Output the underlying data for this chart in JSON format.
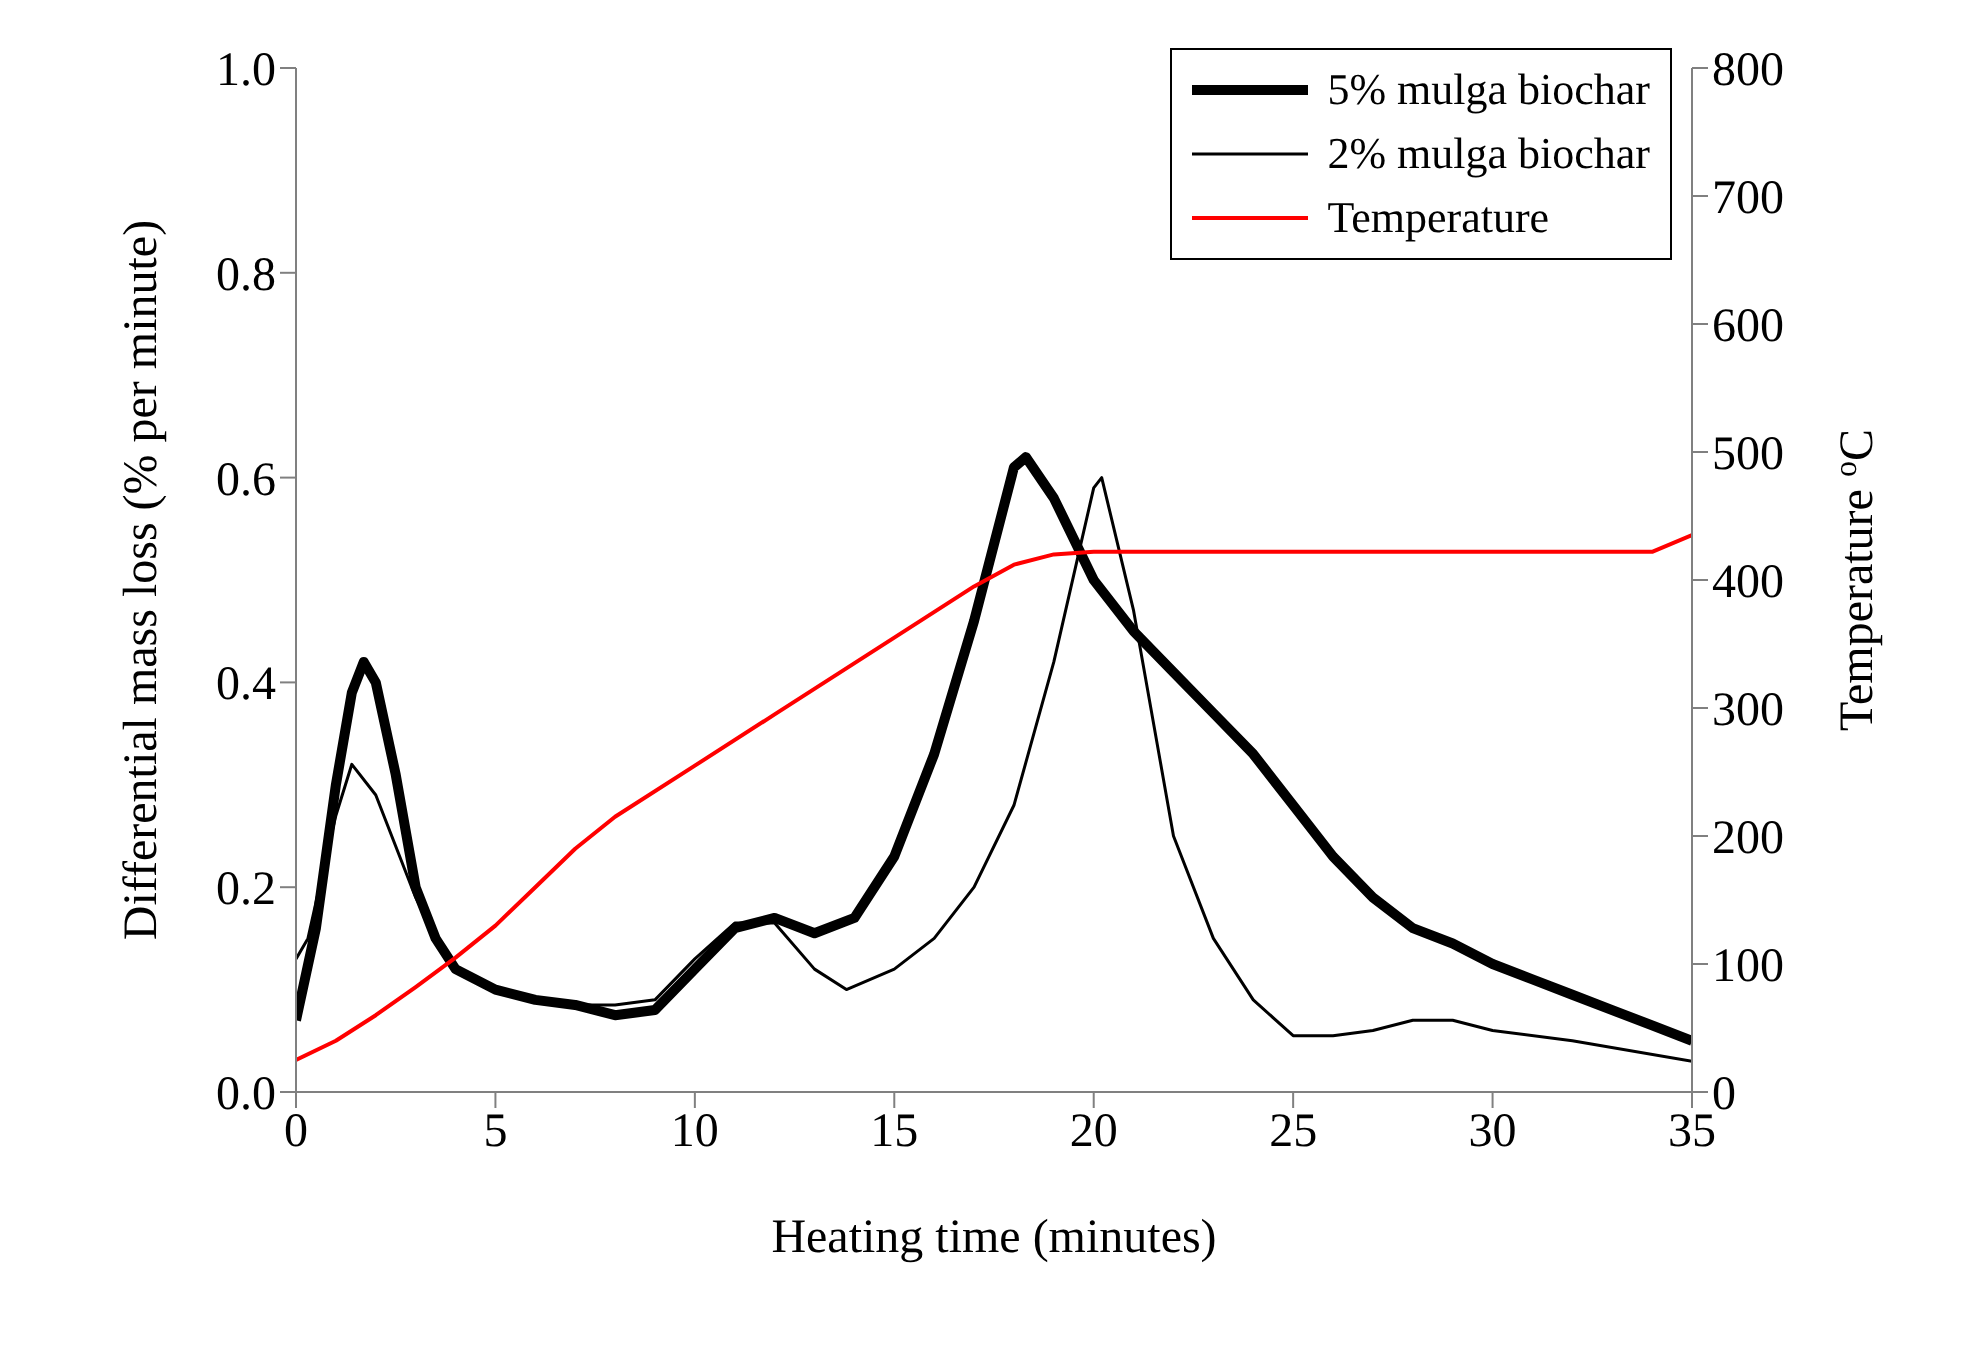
{
  "chart_data": {
    "type": "line",
    "xlabel": "Heating time (minutes)",
    "ylabel": "Differential mass loss (% per minute)",
    "y2label": "Temperature $^{o}$C",
    "xlim": [
      0,
      35
    ],
    "xticks": [
      0,
      5,
      10,
      15,
      20,
      25,
      30,
      35
    ],
    "ylim": [
      0,
      1
    ],
    "yticks": [
      {
        "value": 0,
        "label": "0.0"
      },
      0.2,
      0.4,
      0.6,
      0.8,
      {
        "value": 1,
        "label": "1.0"
      }
    ],
    "y2lim": [
      0,
      800
    ],
    "y2ticks": [
      0,
      100,
      200,
      300,
      400,
      500,
      600,
      700,
      800
    ],
    "legend": "top right",
    "grid": false,
    "marker": "none",
    "line_style": "solid",
    "series": [
      {
        "name": "5% mulga biochar",
        "color": "#000000",
        "x": [
          0,
          0.5,
          1,
          1.4,
          1.7,
          2,
          2.5,
          3,
          3.5,
          4,
          5,
          6,
          7,
          8,
          9,
          10,
          11,
          12,
          13,
          14,
          15,
          16,
          17,
          18,
          18.3,
          19,
          20,
          21,
          22,
          23,
          24,
          25,
          26,
          27,
          28,
          29,
          30,
          31,
          32,
          33,
          34,
          35
        ],
        "values": [
          0.07,
          0.16,
          0.3,
          0.39,
          0.42,
          0.4,
          0.31,
          0.2,
          0.15,
          0.12,
          0.1,
          0.09,
          0.085,
          0.075,
          0.08,
          0.12,
          0.16,
          0.17,
          0.155,
          0.17,
          0.23,
          0.33,
          0.46,
          0.61,
          0.62,
          0.58,
          0.5,
          0.45,
          0.41,
          0.37,
          0.33,
          0.28,
          0.23,
          0.19,
          0.16,
          0.145,
          0.125,
          0.11,
          0.095,
          0.08,
          0.065,
          0.05
        ]
      },
      {
        "name": "2% mulga biochar",
        "color": "#000000",
        "x": [
          0,
          0.3,
          0.7,
          1,
          1.4,
          2,
          2.5,
          3,
          3.5,
          4,
          5,
          6,
          7,
          8,
          9,
          10,
          11,
          12,
          13,
          13.8,
          15,
          16,
          17,
          18,
          19,
          20,
          20.2,
          21,
          22,
          23,
          24,
          25,
          26,
          27,
          28,
          29,
          30,
          32,
          35
        ],
        "values": [
          0.13,
          0.15,
          0.22,
          0.27,
          0.32,
          0.29,
          0.24,
          0.19,
          0.15,
          0.12,
          0.1,
          0.09,
          0.085,
          0.085,
          0.09,
          0.13,
          0.165,
          0.165,
          0.12,
          0.1,
          0.12,
          0.15,
          0.2,
          0.28,
          0.42,
          0.59,
          0.6,
          0.47,
          0.25,
          0.15,
          0.09,
          0.055,
          0.055,
          0.06,
          0.07,
          0.07,
          0.06,
          0.05,
          0.03
        ]
      },
      {
        "name": "Temperature",
        "color": "#ff0000",
        "axis": "y2",
        "x": [
          0,
          1,
          2,
          3,
          4,
          5,
          6,
          7,
          8,
          10,
          12,
          15,
          17,
          18,
          19,
          20,
          34,
          35
        ],
        "values": [
          25,
          40,
          60,
          82,
          105,
          130,
          160,
          190,
          215,
          255,
          295,
          355,
          395,
          412,
          420,
          422,
          422,
          435
        ]
      }
    ]
  }
}
